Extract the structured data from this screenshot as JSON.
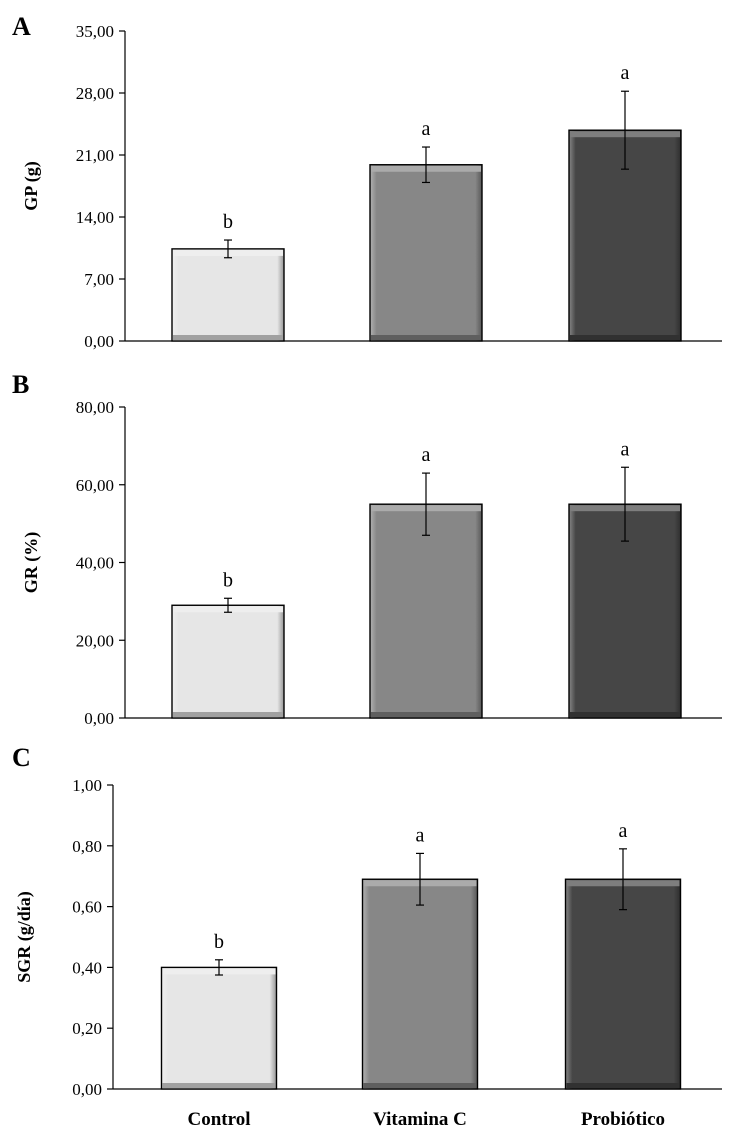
{
  "chart_data": [
    {
      "type": "bar",
      "panel": "A",
      "ylabel": "GP (g)",
      "ylim": [
        0,
        35
      ],
      "yticks": [
        "0,00",
        "7,00",
        "14,00",
        "21,00",
        "28,00",
        "35,00"
      ],
      "categories": [
        "Control",
        "Vitamina C",
        "Probiótico"
      ],
      "values": [
        10.4,
        19.9,
        23.8
      ],
      "errors": [
        1.0,
        2.0,
        4.4
      ],
      "significance": [
        "b",
        "a",
        "a"
      ],
      "colors": [
        "#e6e6e6",
        "#878787",
        "#464646"
      ]
    },
    {
      "type": "bar",
      "panel": "B",
      "ylabel": "GR (%)",
      "ylim": [
        0,
        80
      ],
      "yticks": [
        "0,00",
        "20,00",
        "40,00",
        "60,00",
        "80,00"
      ],
      "categories": [
        "Control",
        "Vitamina C",
        "Probiótico"
      ],
      "values": [
        29.0,
        55.0,
        55.0
      ],
      "errors": [
        1.8,
        8.0,
        9.5
      ],
      "significance": [
        "b",
        "a",
        "a"
      ],
      "colors": [
        "#e6e6e6",
        "#878787",
        "#464646"
      ]
    },
    {
      "type": "bar",
      "panel": "C",
      "ylabel": "SGR (g/día)",
      "ylim": [
        0,
        1
      ],
      "yticks": [
        "0,00",
        "0,20",
        "0,40",
        "0,60",
        "0,80",
        "1,00"
      ],
      "categories": [
        "Control",
        "Vitamina C",
        "Probiótico"
      ],
      "values": [
        0.4,
        0.69,
        0.69
      ],
      "errors": [
        0.025,
        0.085,
        0.1
      ],
      "significance": [
        "b",
        "a",
        "a"
      ],
      "colors": [
        "#e6e6e6",
        "#878787",
        "#464646"
      ]
    }
  ]
}
